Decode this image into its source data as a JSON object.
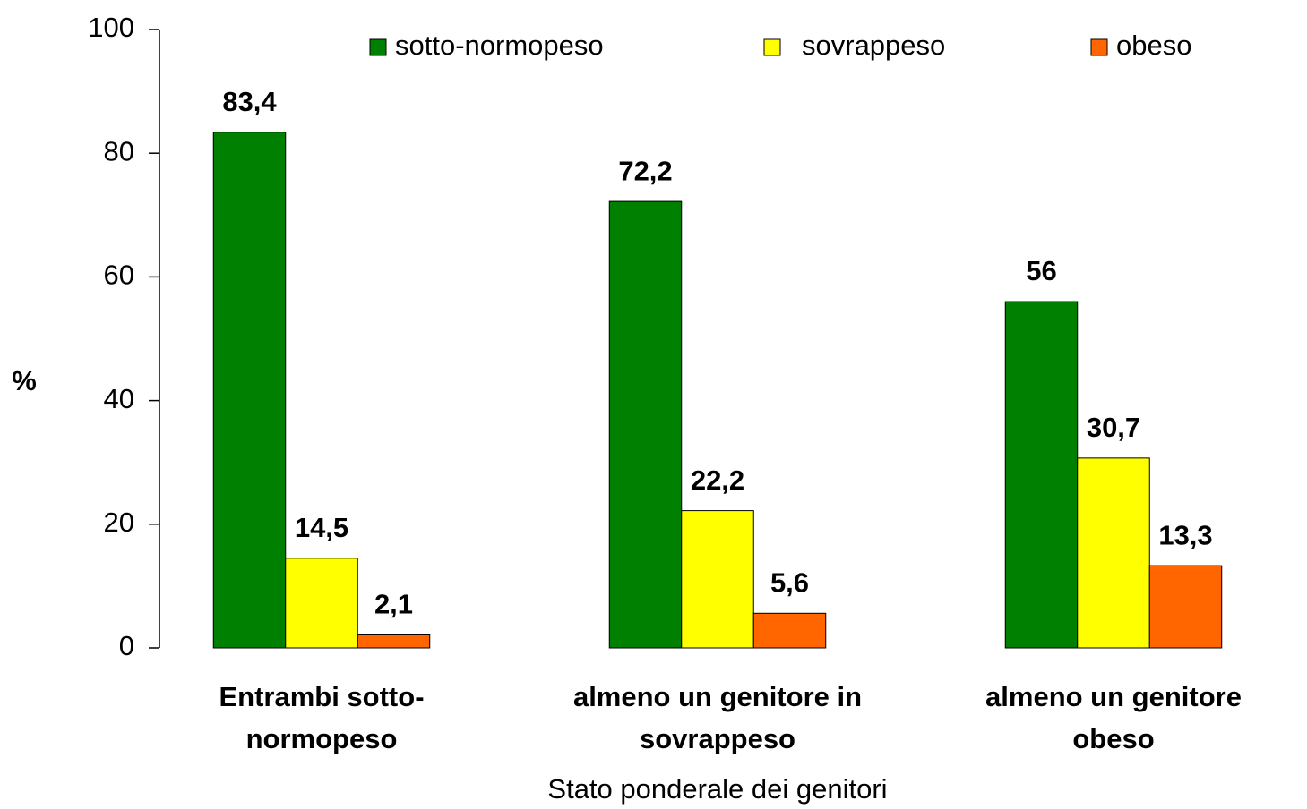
{
  "chart_data": {
    "type": "bar",
    "y_label": "%",
    "x_label": "Stato ponderale dei genitori",
    "categories": [
      [
        "Entrambi sotto-",
        "normopeso"
      ],
      [
        "almeno un genitore in",
        "sovrappeso"
      ],
      [
        "almeno un genitore",
        "obeso"
      ]
    ],
    "series": [
      {
        "name": "sotto-normopeso",
        "color": "#008000",
        "values": [
          83.4,
          72.2,
          56
        ],
        "value_labels": [
          "83,4",
          "72,2",
          "56"
        ]
      },
      {
        "name": "sovrappeso",
        "color": "#ffff00",
        "values": [
          14.5,
          22.2,
          30.7
        ],
        "value_labels": [
          "14,5",
          "22,2",
          "30,7"
        ]
      },
      {
        "name": "obeso",
        "color": "#ff6600",
        "values": [
          2.1,
          5.6,
          13.3
        ],
        "value_labels": [
          "2,1",
          "5,6",
          "13,3"
        ]
      }
    ],
    "ylim": [
      0,
      100
    ],
    "yticks": [
      0,
      20,
      40,
      60,
      80,
      100
    ],
    "grid": false
  }
}
